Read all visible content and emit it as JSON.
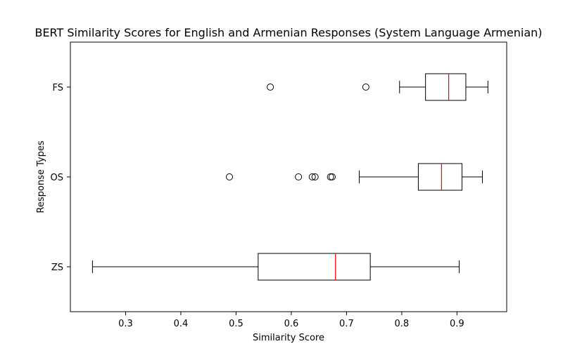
{
  "chart_data": {
    "type": "boxplot",
    "orientation": "horizontal",
    "title": "BERT Similarity Scores for English and Armenian Responses (System Language Armenian)",
    "xlabel": "Similarity Score",
    "ylabel": "Response Types",
    "xlim": [
      0.2,
      0.99
    ],
    "x_ticks": [
      0.3,
      0.4,
      0.5,
      0.6,
      0.7,
      0.8,
      0.9
    ],
    "x_tick_labels": [
      "0.3",
      "0.4",
      "0.5",
      "0.6",
      "0.7",
      "0.8",
      "0.9"
    ],
    "categories": [
      "ZS",
      "OS",
      "FS"
    ],
    "grid": false,
    "colors": {
      "box": "#000000",
      "median": "#ff0000",
      "background": "#ffffff"
    },
    "series": [
      {
        "name": "ZS",
        "whisker_low": 0.24,
        "q1": 0.54,
        "median": 0.68,
        "q3": 0.743,
        "whisker_high": 0.904,
        "outliers": []
      },
      {
        "name": "OS",
        "whisker_low": 0.723,
        "q1": 0.83,
        "median": 0.872,
        "q3": 0.909,
        "whisker_high": 0.946,
        "outliers": [
          0.488,
          0.613,
          0.638,
          0.643,
          0.671,
          0.674
        ]
      },
      {
        "name": "FS",
        "whisker_low": 0.796,
        "q1": 0.843,
        "median": 0.885,
        "q3": 0.916,
        "whisker_high": 0.956,
        "outliers": [
          0.562,
          0.735
        ]
      }
    ]
  }
}
